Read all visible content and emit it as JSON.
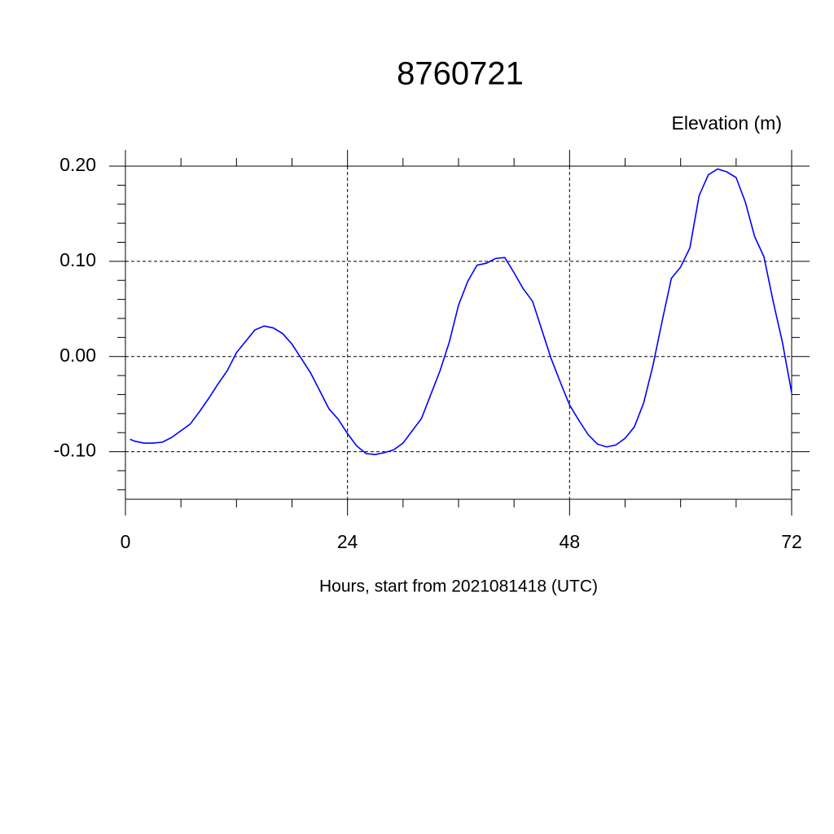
{
  "chart_data": {
    "type": "line",
    "title": "8760721",
    "subtitle": "Elevation (m)",
    "xlabel": "Hours, start from 2021081418 (UTC)",
    "x": [
      0.5,
      1,
      2,
      3,
      4,
      5,
      6,
      7,
      8,
      9,
      10,
      11,
      12,
      13,
      14,
      15,
      16,
      17,
      18,
      19,
      20,
      21,
      22,
      23,
      24,
      25,
      26,
      27,
      28,
      29,
      30,
      31,
      32,
      33,
      34,
      35,
      36,
      37,
      38,
      39,
      40,
      41,
      42,
      43,
      44,
      45,
      46,
      47,
      48,
      49,
      50,
      51,
      52,
      53,
      54,
      55,
      56,
      57,
      58,
      59,
      60,
      61,
      62,
      63,
      64,
      65,
      66,
      67,
      68,
      69,
      70,
      71,
      72
    ],
    "series": [
      {
        "name": "Elevation",
        "color": "#0000ff",
        "values": [
          -0.087,
          -0.089,
          -0.091,
          -0.091,
          -0.09,
          -0.085,
          -0.078,
          -0.071,
          -0.058,
          -0.044,
          -0.029,
          -0.015,
          0.004,
          0.016,
          0.028,
          0.032,
          0.03,
          0.024,
          0.013,
          -0.002,
          -0.017,
          -0.036,
          -0.055,
          -0.066,
          -0.081,
          -0.094,
          -0.102,
          -0.103,
          -0.101,
          -0.098,
          -0.091,
          -0.078,
          -0.065,
          -0.04,
          -0.015,
          0.015,
          0.054,
          0.079,
          0.096,
          0.098,
          0.103,
          0.104,
          0.088,
          0.071,
          0.058,
          0.028,
          -0.002,
          -0.027,
          -0.051,
          -0.067,
          -0.082,
          -0.092,
          -0.095,
          -0.093,
          -0.086,
          -0.074,
          -0.049,
          -0.01,
          0.037,
          0.082,
          0.094,
          0.114,
          0.169,
          0.191,
          0.197,
          0.194,
          0.188,
          0.162,
          0.126,
          0.105,
          0.058,
          0.015,
          -0.038
        ]
      }
    ],
    "xlim": [
      0,
      72
    ],
    "xticks": [
      0,
      24,
      48,
      72
    ],
    "xminorticks": [
      6,
      12,
      18,
      30,
      36,
      42,
      54,
      60,
      66
    ],
    "ylim": [
      -0.15,
      0.2
    ],
    "yticks": [
      {
        "value": -0.1,
        "label": "-0.10"
      },
      {
        "value": 0,
        "label": "0.00"
      },
      {
        "value": 0.1,
        "label": "0.10"
      },
      {
        "value": 0.2,
        "label": "0.20"
      }
    ],
    "yminorticks": [
      -0.14,
      -0.12,
      -0.08,
      -0.06,
      -0.04,
      -0.02,
      0.02,
      0.04,
      0.06,
      0.08,
      0.12,
      0.14,
      0.16,
      0.18
    ],
    "grid": true
  }
}
